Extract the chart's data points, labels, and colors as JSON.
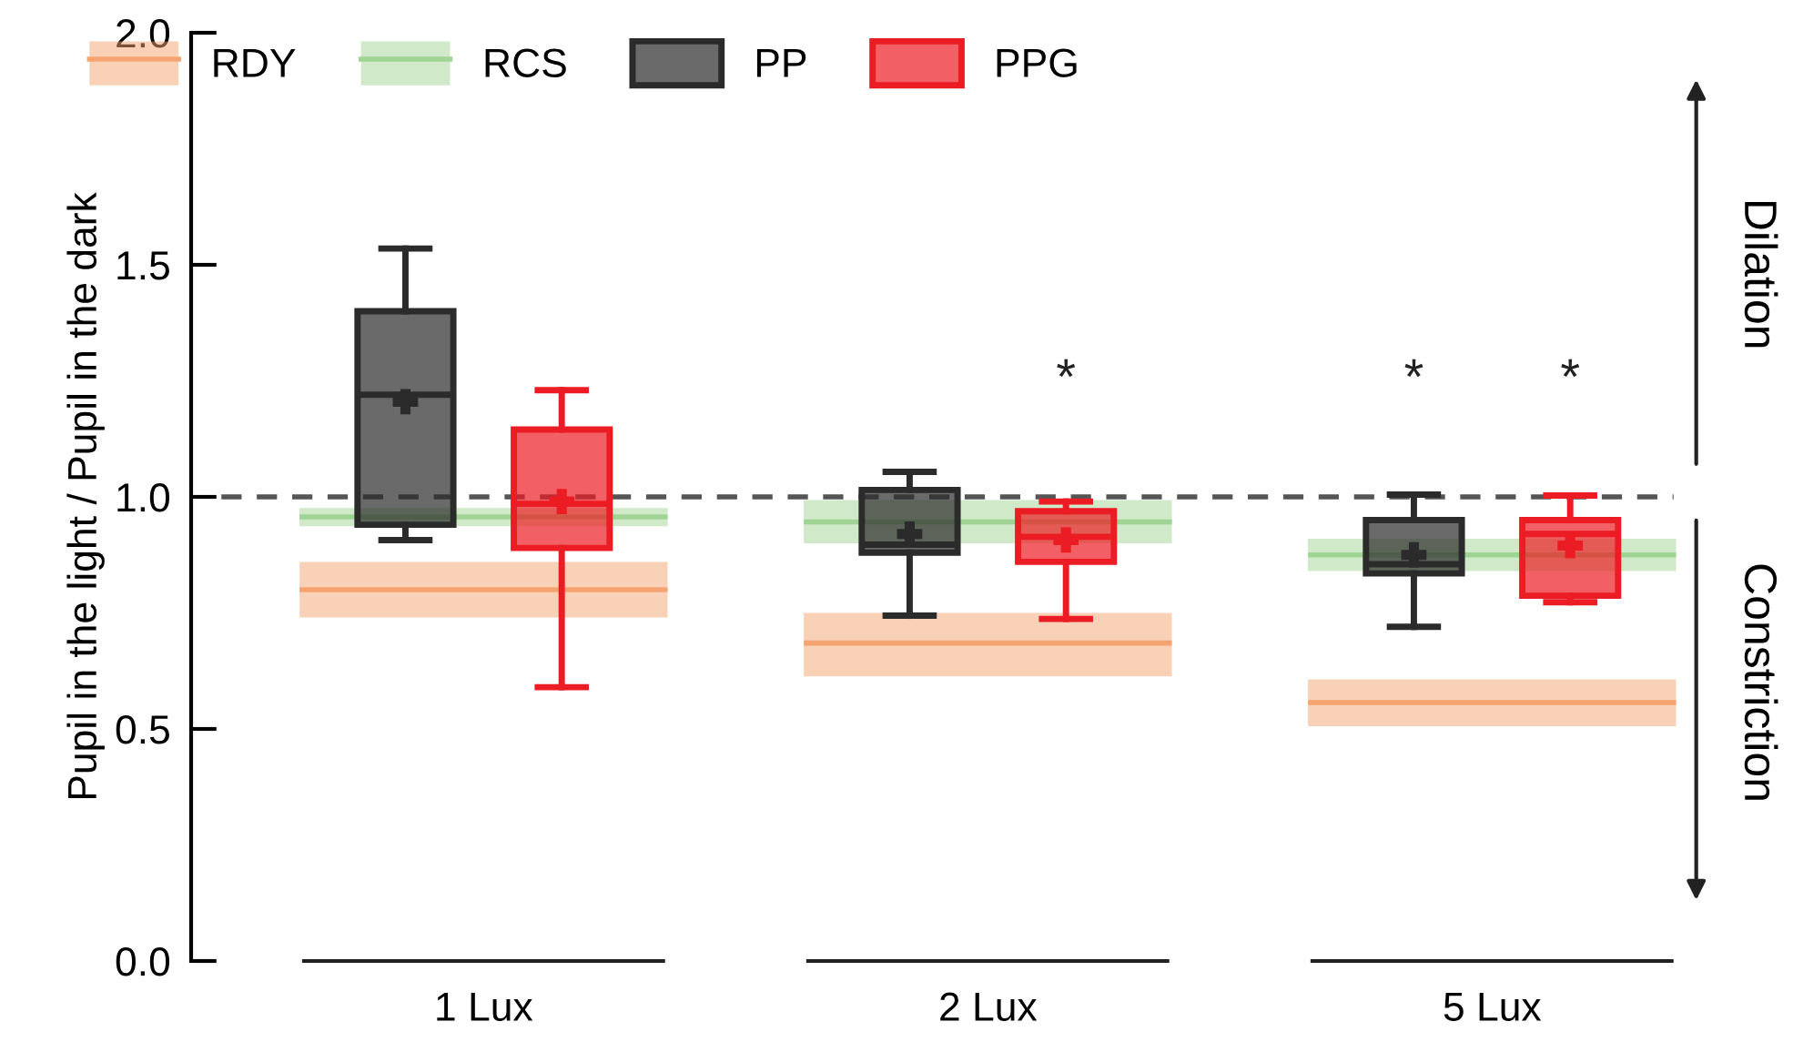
{
  "chart_data": {
    "type": "box",
    "ylabel": "Pupil in the light / Pupil in the dark",
    "categories": [
      "1 Lux",
      "2 Lux",
      "5 Lux"
    ],
    "ylim": [
      0,
      2.0
    ],
    "yticks": [
      {
        "value": 0,
        "label": "0.0"
      },
      {
        "value": 0.5,
        "label": "0.5"
      },
      {
        "value": 1.0,
        "label": "1.0"
      },
      {
        "value": 1.5,
        "label": "1.5"
      },
      {
        "value": 2.0,
        "label": "2.0"
      }
    ],
    "series": [
      {
        "name": "RDY",
        "color": "#f4a470",
        "boxes": [
          {
            "low": 0.74,
            "q1": 0.74,
            "median": 0.8,
            "q3": 0.86,
            "high": 0.86
          },
          {
            "low": 0.613,
            "q1": 0.613,
            "median": 0.685,
            "q3": 0.75,
            "high": 0.75
          },
          {
            "low": 0.506,
            "q1": 0.506,
            "median": 0.557,
            "q3": 0.607,
            "high": 0.607
          }
        ]
      },
      {
        "name": "RCS",
        "color": "#9fd494",
        "boxes": [
          {
            "low": 0.937,
            "q1": 0.937,
            "median": 0.957,
            "q3": 0.976,
            "high": 0.976
          },
          {
            "low": 0.9,
            "q1": 0.9,
            "median": 0.946,
            "q3": 0.993,
            "high": 0.993
          },
          {
            "low": 0.84,
            "q1": 0.84,
            "median": 0.875,
            "q3": 0.91,
            "high": 0.91
          }
        ]
      },
      {
        "name": "PP",
        "color": "#2b2b2b",
        "boxes": [
          {
            "low": 0.907,
            "q1": 0.94,
            "median": 1.22,
            "q3": 1.4,
            "high": 1.535,
            "mean": 1.205
          },
          {
            "low": 0.744,
            "q1": 0.88,
            "median": 0.897,
            "q3": 1.015,
            "high": 1.054,
            "mean": 0.92
          },
          {
            "low": 0.72,
            "q1": 0.835,
            "median": 0.855,
            "q3": 0.95,
            "high": 1.005,
            "mean": 0.875
          }
        ]
      },
      {
        "name": "PPG",
        "color": "#ec1c24",
        "boxes": [
          {
            "low": 0.59,
            "q1": 0.89,
            "median": 0.985,
            "q3": 1.145,
            "high": 1.23,
            "mean": 0.99
          },
          {
            "low": 0.737,
            "q1": 0.86,
            "median": 0.914,
            "q3": 0.969,
            "high": 0.99,
            "mean": 0.907
          },
          {
            "low": 0.773,
            "q1": 0.787,
            "median": 0.92,
            "q3": 0.95,
            "high": 1.003,
            "mean": 0.895
          }
        ]
      }
    ],
    "ref_lines": [
      {
        "axis": "y",
        "value": 1.0,
        "color": "#555555",
        "line_style": "dashed"
      }
    ],
    "annotations": [
      "*",
      "*",
      "*",
      "Dilation",
      "Constriction"
    ],
    "legend": "top"
  }
}
